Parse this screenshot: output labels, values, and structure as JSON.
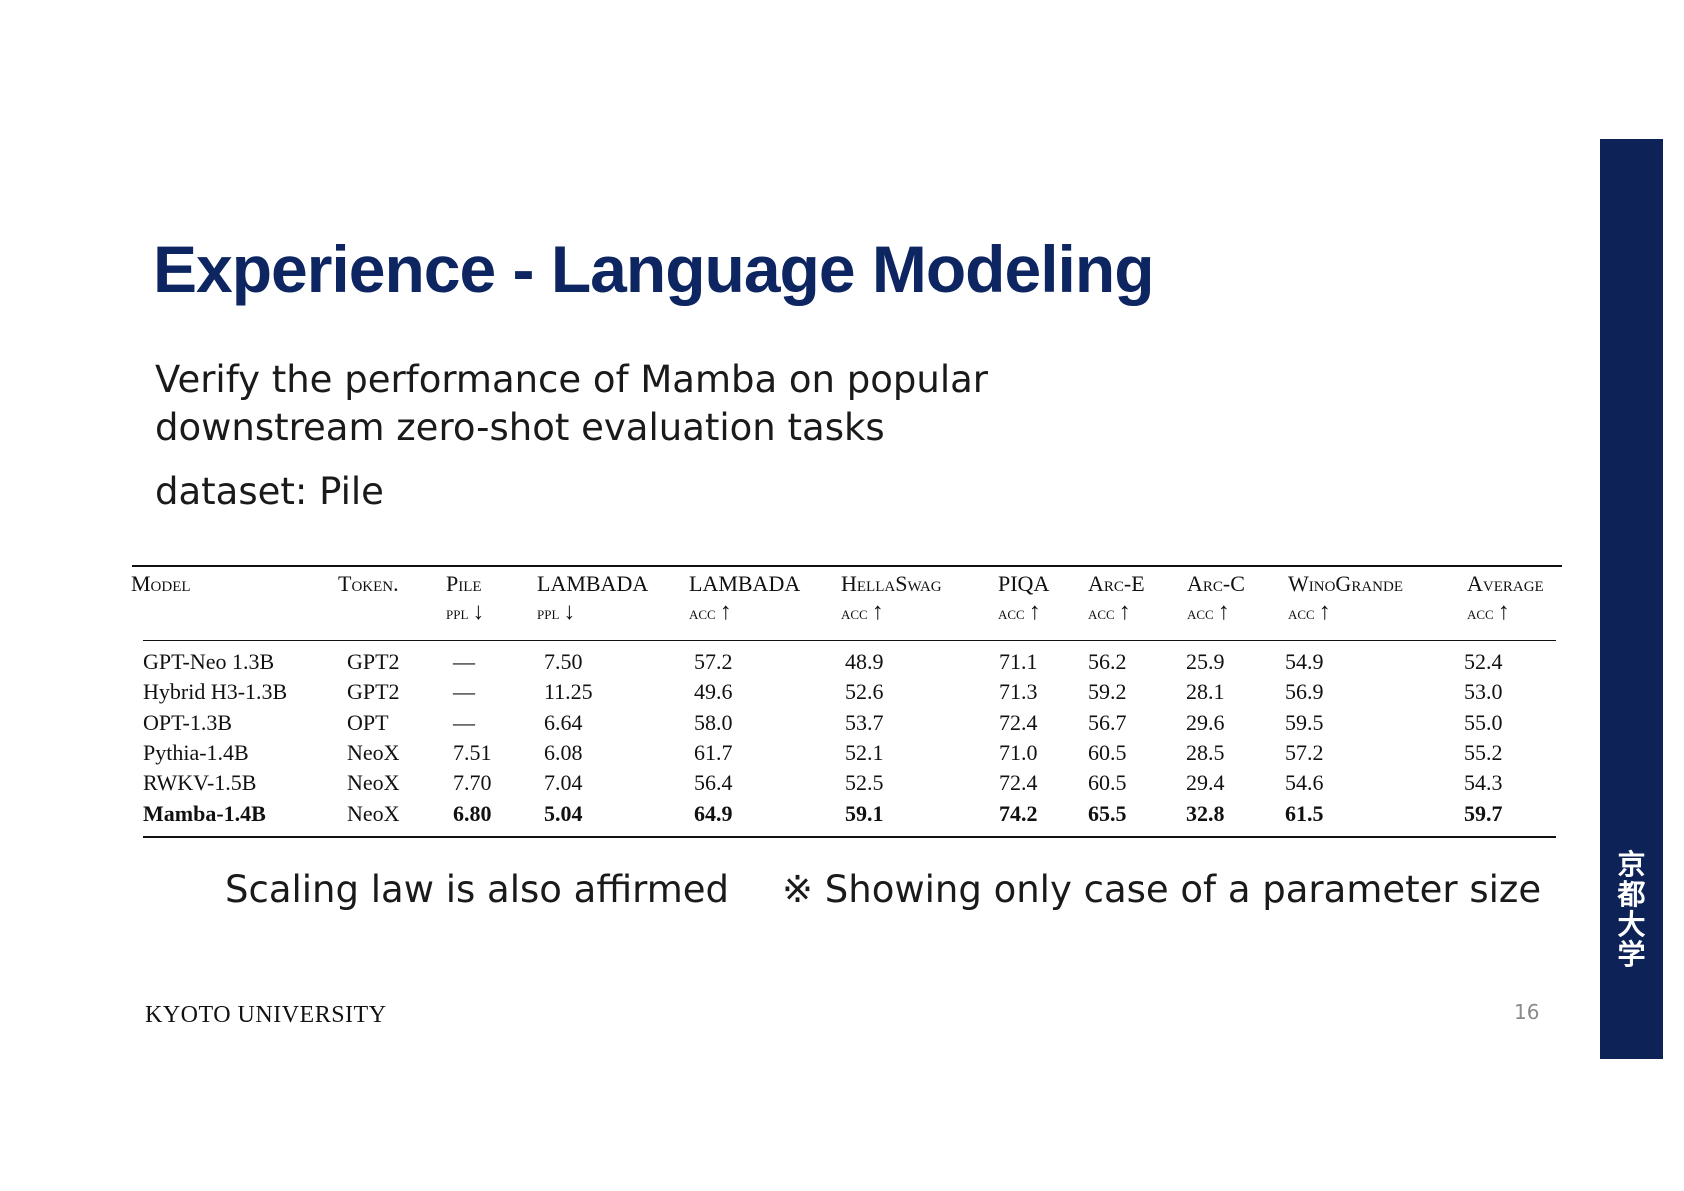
{
  "slide": {
    "title": "Experience - Language Modeling",
    "description_lines": [
      "Verify the performance of Mamba on popular",
      "downstream zero-shot evaluation tasks"
    ],
    "dataset": "dataset: Pile",
    "note_left": "Scaling law is also affirmed",
    "note_right": "※ Showing only case of a parameter size",
    "footer": "KYOTO UNIVERSITY",
    "page_number": "16",
    "seal_chars": [
      "京",
      "都",
      "大",
      "学"
    ],
    "colors": {
      "title": "#0d2560",
      "sidebar": "#0d2257"
    }
  },
  "table": {
    "headers": [
      {
        "name": "Model",
        "metric": ""
      },
      {
        "name": "Token.",
        "metric": ""
      },
      {
        "name": "Pile",
        "metric": "ppl",
        "arrow": "↓"
      },
      {
        "name": "LAMBADA",
        "metric": "ppl",
        "arrow": "↓"
      },
      {
        "name": "LAMBADA",
        "metric": "acc",
        "arrow": "↑"
      },
      {
        "name": "HellaSwag",
        "metric": "acc",
        "arrow": "↑"
      },
      {
        "name": "PIQA",
        "metric": "acc",
        "arrow": "↑"
      },
      {
        "name": "Arc-E",
        "metric": "acc",
        "arrow": "↑"
      },
      {
        "name": "Arc-C",
        "metric": "acc",
        "arrow": "↑"
      },
      {
        "name": "WinoGrande",
        "metric": "acc",
        "arrow": "↑"
      },
      {
        "name": "Average",
        "metric": "acc",
        "arrow": "↑"
      }
    ],
    "rows": [
      [
        "GPT-Neo 1.3B",
        "GPT2",
        "—",
        "7.50",
        "57.2",
        "48.9",
        "71.1",
        "56.2",
        "25.9",
        "54.9",
        "52.4"
      ],
      [
        "Hybrid H3-1.3B",
        "GPT2",
        "—",
        "11.25",
        "49.6",
        "52.6",
        "71.3",
        "59.2",
        "28.1",
        "56.9",
        "53.0"
      ],
      [
        "OPT-1.3B",
        "OPT",
        "—",
        "6.64",
        "58.0",
        "53.7",
        "72.4",
        "56.7",
        "29.6",
        "59.5",
        "55.0"
      ],
      [
        "Pythia-1.4B",
        "NeoX",
        "7.51",
        "6.08",
        "61.7",
        "52.1",
        "71.0",
        "60.5",
        "28.5",
        "57.2",
        "55.2"
      ],
      [
        "RWKV-1.5B",
        "NeoX",
        "7.70",
        "7.04",
        "56.4",
        "52.5",
        "72.4",
        "60.5",
        "29.4",
        "54.6",
        "54.3"
      ],
      [
        "Mamba-1.4B",
        "NeoX",
        "6.80",
        "5.04",
        "64.9",
        "59.1",
        "74.2",
        "65.5",
        "32.8",
        "61.5",
        "59.7"
      ]
    ],
    "bold_row": "Mamba-1.4B"
  }
}
